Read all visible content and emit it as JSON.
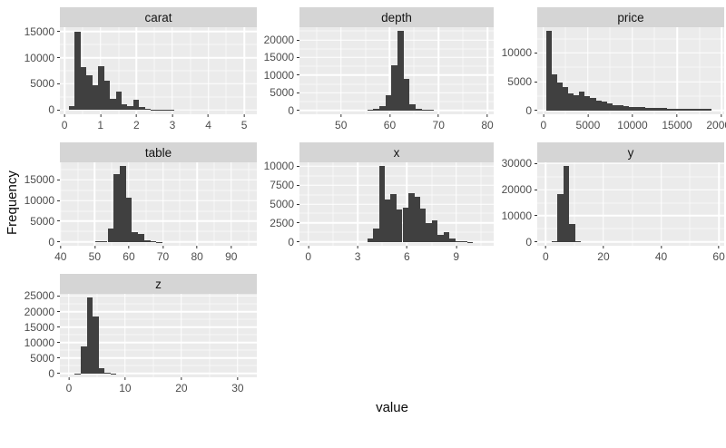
{
  "figure": {
    "y_axis_title": "Frequency",
    "x_axis_title": "value",
    "colors": {
      "page_bg": "#ffffff",
      "panel_bg": "#ebebeb",
      "strip_bg": "#d5d5d5",
      "strip_text": "#141414",
      "bar": "#404040",
      "grid_major": "#ffffff",
      "grid_minor": "rgba(255,255,255,0.6)",
      "tick_text": "#4d4d4d",
      "tick_mark": "#333333",
      "axis_title_text": "#0a0a0a"
    }
  },
  "chart_data": [
    {
      "type": "bar",
      "subtype": "histogram",
      "title": "carat",
      "xlim": [
        -0.13,
        5.35
      ],
      "ylim": [
        -790,
        15790
      ],
      "xticks": [
        0,
        1,
        2,
        3,
        4,
        5
      ],
      "yticks": [
        0,
        5000,
        10000,
        15000
      ],
      "bin_width": 0.163,
      "bins": [
        [
          0.12,
          700
        ],
        [
          0.283,
          15000
        ],
        [
          0.446,
          8200
        ],
        [
          0.609,
          6600
        ],
        [
          0.772,
          4800
        ],
        [
          0.935,
          8400
        ],
        [
          1.098,
          5600
        ],
        [
          1.261,
          2100
        ],
        [
          1.424,
          3500
        ],
        [
          1.587,
          1200
        ],
        [
          1.75,
          700
        ],
        [
          1.913,
          2000
        ],
        [
          2.076,
          600
        ],
        [
          2.239,
          300
        ],
        [
          2.402,
          150
        ],
        [
          2.565,
          80
        ],
        [
          2.728,
          40
        ],
        [
          2.891,
          20
        ],
        [
          3.054,
          10
        ],
        [
          3.217,
          5
        ],
        [
          3.99,
          3
        ],
        [
          4.97,
          3
        ]
      ]
    },
    {
      "type": "bar",
      "subtype": "histogram",
      "title": "depth",
      "xlim": [
        41.5,
        81.3
      ],
      "ylim": [
        -1125,
        23625
      ],
      "xticks": [
        50,
        60,
        70,
        80
      ],
      "yticks": [
        0,
        5000,
        10000,
        15000,
        20000
      ],
      "bin_width": 1.24,
      "bins": [
        [
          55.4,
          120
        ],
        [
          56.64,
          400
        ],
        [
          57.88,
          1300
        ],
        [
          59.12,
          4400
        ],
        [
          60.36,
          12800
        ],
        [
          61.6,
          22500
        ],
        [
          62.84,
          8900
        ],
        [
          64.08,
          1700
        ],
        [
          65.32,
          420
        ],
        [
          66.56,
          150
        ],
        [
          67.8,
          60
        ]
      ]
    },
    {
      "type": "bar",
      "subtype": "histogram",
      "title": "price",
      "xlim": [
        -700,
        20300
      ],
      "ylim": [
        -690,
        14490
      ],
      "xticks": [
        0,
        5000,
        10000,
        15000,
        20000
      ],
      "yticks": [
        0,
        5000,
        10000
      ],
      "bin_width": 617,
      "bins": [
        [
          326,
          13800
        ],
        [
          943,
          6300
        ],
        [
          1560,
          4850
        ],
        [
          2177,
          4000
        ],
        [
          2794,
          2900
        ],
        [
          3411,
          2700
        ],
        [
          4028,
          3300
        ],
        [
          4645,
          2500
        ],
        [
          5262,
          2100
        ],
        [
          5879,
          1750
        ],
        [
          6496,
          1450
        ],
        [
          7113,
          1150
        ],
        [
          7730,
          950
        ],
        [
          8347,
          820
        ],
        [
          8964,
          710
        ],
        [
          9581,
          630
        ],
        [
          10198,
          560
        ],
        [
          10815,
          500
        ],
        [
          11432,
          460
        ],
        [
          12049,
          420
        ],
        [
          12666,
          390
        ],
        [
          13283,
          360
        ],
        [
          13900,
          330
        ],
        [
          14517,
          310
        ],
        [
          15134,
          290
        ],
        [
          15751,
          270
        ],
        [
          16368,
          250
        ],
        [
          16985,
          240
        ],
        [
          17602,
          230
        ],
        [
          18219,
          220
        ]
      ]
    },
    {
      "type": "bar",
      "subtype": "histogram",
      "title": "table",
      "xlim": [
        39.8,
        97.5
      ],
      "ylim": [
        -915,
        19215
      ],
      "xticks": [
        40,
        50,
        60,
        70,
        80,
        90
      ],
      "yticks": [
        0,
        5000,
        10000,
        15000
      ],
      "bin_width": 1.79,
      "bins": [
        [
          50.17,
          80
        ],
        [
          51.97,
          150
        ],
        [
          53.76,
          3300
        ],
        [
          55.55,
          16400
        ],
        [
          57.34,
          18300
        ],
        [
          59.14,
          10600
        ],
        [
          60.93,
          2400
        ],
        [
          62.72,
          1900
        ],
        [
          64.52,
          450
        ],
        [
          66.31,
          130
        ],
        [
          68.1,
          40
        ]
      ]
    },
    {
      "type": "bar",
      "subtype": "histogram",
      "title": "x",
      "xlim": [
        -0.54,
        11.28
      ],
      "ylim": [
        -500,
        10500
      ],
      "xticks": [
        0,
        3,
        6,
        9
      ],
      "yticks": [
        0,
        2500,
        5000,
        7500,
        10000
      ],
      "bin_width": 0.358,
      "bins": [
        [
          3.58,
          400
        ],
        [
          3.94,
          1800
        ],
        [
          4.3,
          10000
        ],
        [
          4.65,
          5600
        ],
        [
          5.01,
          6300
        ],
        [
          5.37,
          4300
        ],
        [
          5.73,
          4500
        ],
        [
          6.09,
          6400
        ],
        [
          6.44,
          6000
        ],
        [
          6.8,
          4400
        ],
        [
          7.16,
          2500
        ],
        [
          7.52,
          2900
        ],
        [
          7.88,
          900
        ],
        [
          8.23,
          1300
        ],
        [
          8.59,
          400
        ],
        [
          8.95,
          150
        ],
        [
          9.31,
          60
        ],
        [
          9.67,
          20
        ]
      ]
    },
    {
      "type": "bar",
      "subtype": "histogram",
      "title": "y",
      "xlim": [
        -2.95,
        61.85
      ],
      "ylim": [
        -1450,
        30450
      ],
      "xticks": [
        0,
        20,
        40,
        60
      ],
      "yticks": [
        0,
        10000,
        20000,
        30000
      ],
      "bin_width": 2.03,
      "bins": [
        [
          2.03,
          250
        ],
        [
          4.06,
          18200
        ],
        [
          6.09,
          29000
        ],
        [
          8.12,
          6800
        ],
        [
          10.15,
          150
        ],
        [
          30.45,
          3
        ],
        [
          56.84,
          2
        ]
      ]
    },
    {
      "type": "bar",
      "subtype": "histogram",
      "title": "z",
      "xlim": [
        -1.6,
        33.4
      ],
      "ylim": [
        -1225,
        25725
      ],
      "xticks": [
        0,
        10,
        20,
        30
      ],
      "yticks": [
        0,
        5000,
        10000,
        15000,
        20000,
        25000
      ],
      "bin_width": 1.06,
      "bins": [
        [
          1.06,
          80
        ],
        [
          2.12,
          8800
        ],
        [
          3.18,
          24500
        ],
        [
          4.24,
          18500
        ],
        [
          5.3,
          1800
        ],
        [
          6.36,
          150
        ],
        [
          7.42,
          40
        ],
        [
          31.8,
          2
        ]
      ]
    }
  ]
}
